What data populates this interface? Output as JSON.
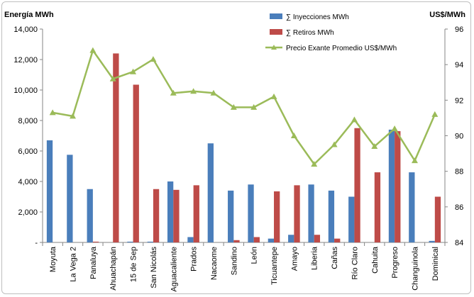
{
  "chart_data": {
    "type": "bar",
    "ylabel": "Energía MWh",
    "y2label": "US$/MWh",
    "ylim": [
      0,
      14000
    ],
    "y2lim": [
      84,
      96
    ],
    "y_ticks": [
      "-",
      "2,000",
      "4,000",
      "6,000",
      "8,000",
      "10,000",
      "12,000",
      "14,000"
    ],
    "y2_ticks": [
      "84",
      "86",
      "88",
      "90",
      "92",
      "94",
      "96"
    ],
    "categories": [
      "Moyuta",
      "La Vega 2",
      "Panaluya",
      "Ahuachapán",
      "15 de Sep",
      "San Nicolás",
      "Aguacaliente",
      "Prados",
      "Nacaome",
      "Sandino",
      "León",
      "Ticuantepe",
      "Amayo",
      "Liberia",
      "Cañas",
      "Río Claro",
      "Cahuita",
      "Progreso",
      "Changuinola",
      "Dominical"
    ],
    "series": [
      {
        "name": "∑ Inyecciones MWh",
        "type": "bar",
        "axis": "left",
        "color": "#4a7ebb",
        "values": [
          6700,
          5750,
          3500,
          0,
          50,
          50,
          4000,
          350,
          6500,
          3400,
          3800,
          250,
          500,
          3800,
          3400,
          3000,
          0,
          7400,
          4600,
          100
        ]
      },
      {
        "name": "∑ Retiros MWh",
        "type": "bar",
        "axis": "left",
        "color": "#be4b48",
        "values": [
          0,
          0,
          50,
          12400,
          10350,
          3500,
          3450,
          3750,
          0,
          150,
          350,
          3350,
          3750,
          500,
          250,
          7500,
          4600,
          7300,
          0,
          3000
        ]
      },
      {
        "name": "Precio Exante Promedio US$/MWh",
        "type": "line",
        "axis": "right",
        "color": "#9bbb59",
        "values": [
          91.3,
          91.1,
          94.8,
          93.2,
          93.6,
          94.3,
          92.4,
          92.5,
          92.4,
          91.6,
          91.6,
          92.2,
          90.0,
          88.4,
          89.5,
          90.9,
          89.4,
          90.4,
          88.6,
          91.2
        ]
      }
    ],
    "legend_position": "top-right",
    "grid": false
  }
}
